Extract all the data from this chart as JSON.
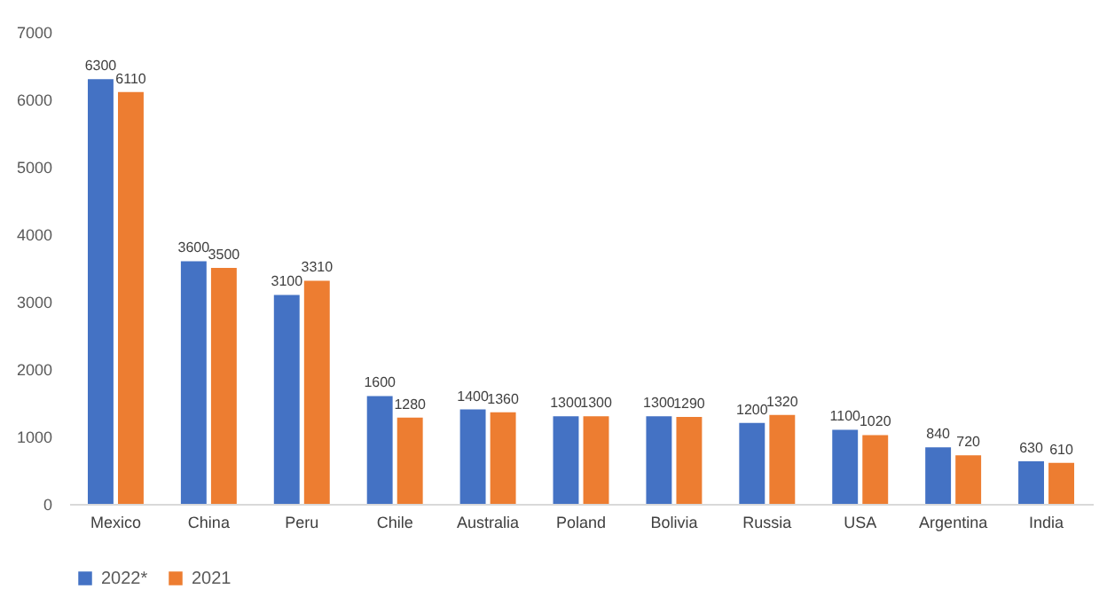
{
  "chart_data": {
    "type": "bar",
    "categories": [
      "Mexico",
      "China",
      "Peru",
      "Chile",
      "Australia",
      "Poland",
      "Bolivia",
      "Russia",
      "USA",
      "Argentina",
      "India"
    ],
    "series": [
      {
        "name": "2022*",
        "color": "#4472c4",
        "values": [
          6300,
          3600,
          3100,
          1600,
          1400,
          1300,
          1300,
          1200,
          1100,
          840,
          630
        ]
      },
      {
        "name": "2021",
        "color": "#ed7d31",
        "values": [
          6110,
          3500,
          3310,
          1280,
          1360,
          1300,
          1290,
          1320,
          1020,
          720,
          610
        ]
      }
    ],
    "ylim": [
      0,
      7000
    ],
    "yticks": [
      0,
      1000,
      2000,
      3000,
      4000,
      5000,
      6000,
      7000
    ],
    "legend": "bottom",
    "data_labels": true
  }
}
